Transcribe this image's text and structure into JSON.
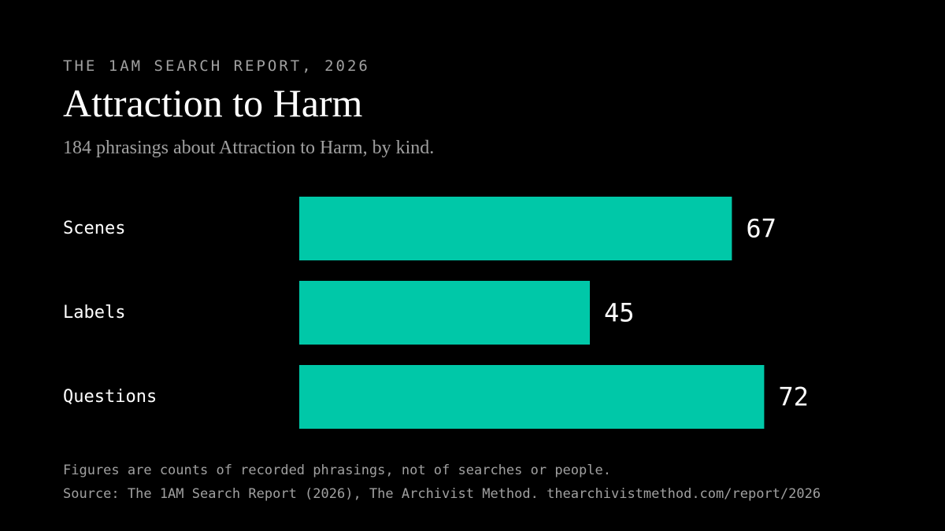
{
  "header": {
    "eyebrow": "THE 1AM SEARCH REPORT, 2026",
    "title": "Attraction to Harm",
    "subtitle": "184 phrasings about Attraction to Harm, by kind."
  },
  "chart_data": {
    "type": "bar",
    "orientation": "horizontal",
    "categories": [
      "Scenes",
      "Labels",
      "Questions"
    ],
    "values": [
      67,
      45,
      72
    ],
    "title": "Attraction to Harm",
    "subtitle": "184 phrasings about Attraction to Harm, by kind.",
    "xlabel": "",
    "ylabel": "",
    "grid": false,
    "data_labels": true,
    "bar_color": "#00c8a8"
  },
  "footer": {
    "note": "Figures are counts of recorded phrasings, not of searches or people.",
    "source": "Source: The 1AM Search Report (2026), The Archivist Method. thearchivistmethod.com/report/2026"
  },
  "colors": {
    "background": "#000000",
    "bar": "#00c8a8",
    "text": "#ffffff",
    "muted": "#a0a0a0"
  }
}
